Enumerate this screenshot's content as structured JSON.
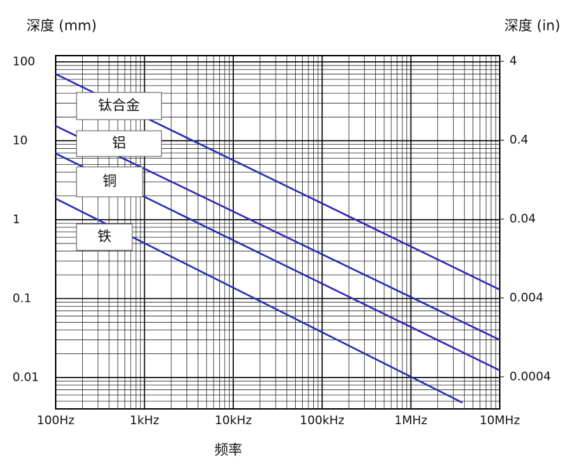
{
  "chart_data": {
    "type": "line",
    "y_label": "深度 (mm)",
    "y2_label": "深度 (in)",
    "x_label": "频率",
    "log_x": true,
    "log_y": true,
    "grid": true,
    "xlim": [
      100,
      10000000
    ],
    "xticks": [
      {
        "value": 100,
        "label": "100Hz"
      },
      {
        "value": 1000,
        "label": "1kHz"
      },
      {
        "value": 10000,
        "label": "10kHz"
      },
      {
        "value": 100000,
        "label": "100kHz"
      },
      {
        "value": 1000000,
        "label": "1MHz"
      },
      {
        "value": 10000000,
        "label": "10MHz"
      }
    ],
    "xminorticks": [
      200,
      300,
      400,
      500,
      600,
      700,
      800,
      900,
      2000,
      3000,
      4000,
      5000,
      6000,
      7000,
      8000,
      9000,
      20000,
      30000,
      40000,
      50000,
      60000,
      70000,
      80000,
      90000,
      200000,
      300000,
      400000,
      500000,
      600000,
      700000,
      800000,
      900000,
      2000000,
      3000000,
      4000000,
      5000000,
      6000000,
      7000000,
      8000000,
      9000000
    ],
    "ylim": [
      0.004,
      120
    ],
    "yticks": [
      100,
      10,
      1,
      0.1,
      0.01
    ],
    "yminorticks": [
      0.005,
      0.006,
      0.007,
      0.008,
      0.009,
      0.02,
      0.03,
      0.04,
      0.05,
      0.06,
      0.07,
      0.08,
      0.09,
      0.2,
      0.3,
      0.4,
      0.5,
      0.6,
      0.7,
      0.8,
      0.9,
      2,
      3,
      4,
      5,
      6,
      7,
      8,
      9,
      20,
      30,
      40,
      50,
      60,
      70,
      80,
      90
    ],
    "y2lim": [
      0.000157,
      4.72
    ],
    "y2ticks": [
      4,
      0.4,
      0.04,
      0.004,
      0.0004
    ],
    "series": [
      {
        "name": "钛合金",
        "color": "#2a2ab8",
        "x": [
          100,
          10000000
        ],
        "values": [
          70,
          0.13
        ]
      },
      {
        "name": "铝",
        "color": "#2a2ab8",
        "x": [
          100,
          10000000
        ],
        "values": [
          15.4,
          0.03
        ]
      },
      {
        "name": "铜",
        "color": "#2a2ab8",
        "x": [
          100,
          10000000
        ],
        "values": [
          6.9,
          0.0123
        ]
      },
      {
        "name": "铁",
        "color": "#2a2ab8",
        "x": [
          100,
          3800000
        ],
        "values": [
          1.85,
          0.0048
        ]
      }
    ]
  }
}
